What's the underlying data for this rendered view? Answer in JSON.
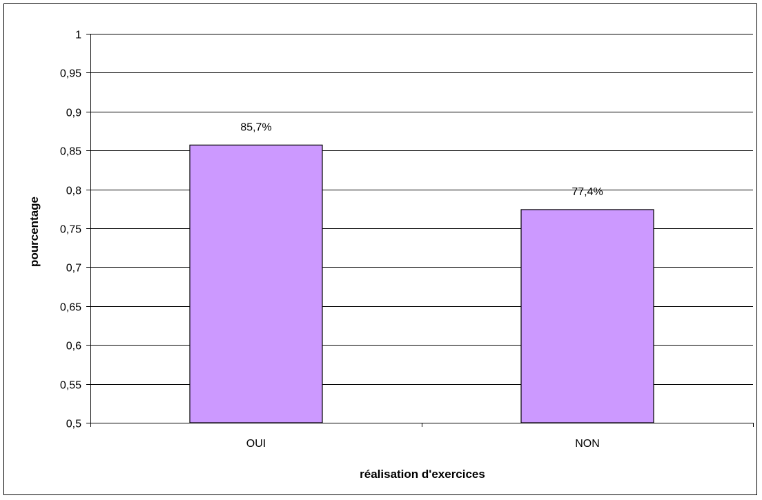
{
  "chart_data": {
    "type": "bar",
    "categories": [
      "OUI",
      "NON"
    ],
    "values": [
      0.857,
      0.774
    ],
    "data_labels": [
      "85,7%",
      "77,4%"
    ],
    "title": "",
    "xlabel": "réalisation d'exercices",
    "ylabel": "pourcentage",
    "ylim": [
      0.5,
      1
    ],
    "yticks": [
      0.5,
      0.55,
      0.6,
      0.65,
      0.7,
      0.75,
      0.8,
      0.85,
      0.9,
      0.95,
      1
    ],
    "ytick_labels": [
      "0,5",
      "0,55",
      "0,6",
      "0,65",
      "0,7",
      "0,75",
      "0,8",
      "0,85",
      "0,9",
      "0,95",
      "1"
    ],
    "grid": true,
    "legend": "none",
    "colors": {
      "bar_fill": "#cc99ff",
      "bar_stroke": "#000000",
      "grid": "#000000",
      "background": "#ffffff"
    }
  }
}
